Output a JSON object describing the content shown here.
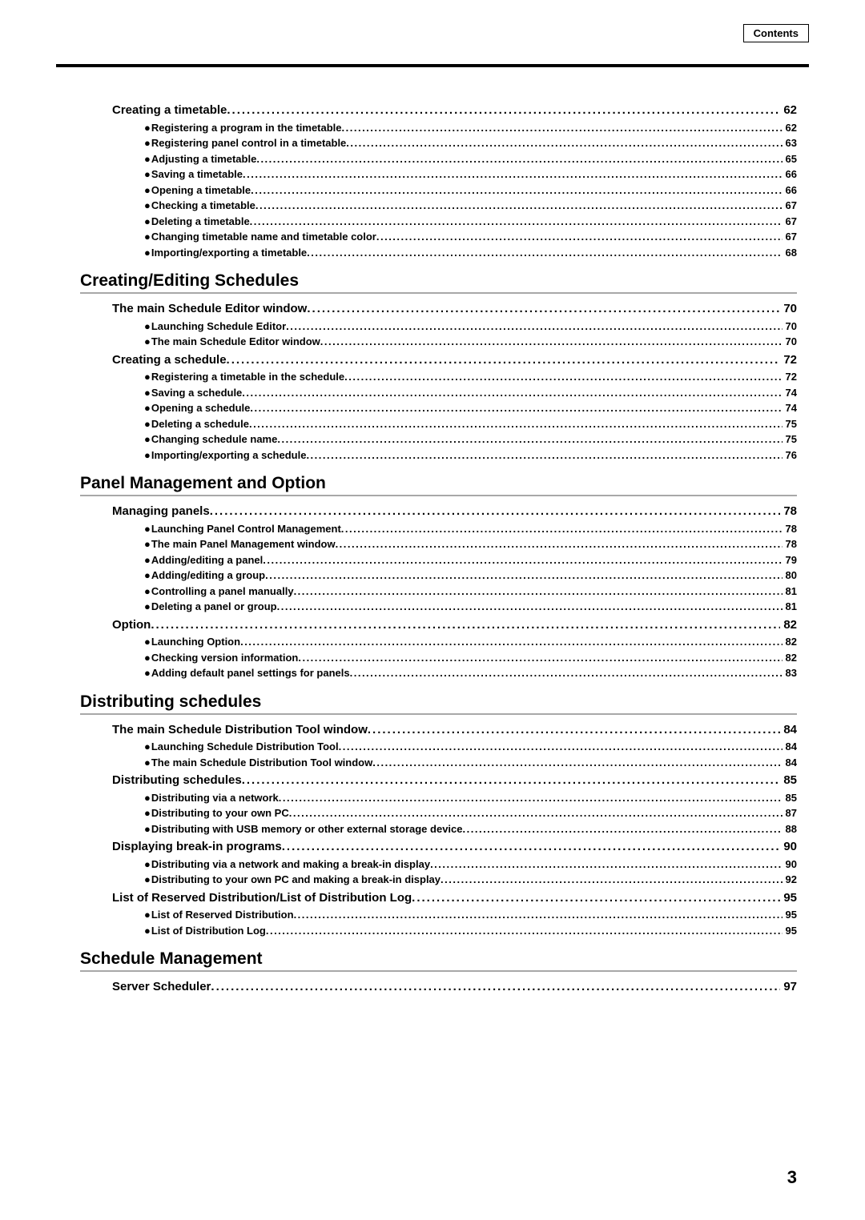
{
  "header_label": "Contents",
  "page_number": "3",
  "bullet_char": "●",
  "sections": [
    {
      "heading": null,
      "entries": [
        {
          "level": 1,
          "bullet": false,
          "text": "Creating a timetable",
          "page": "62"
        },
        {
          "level": 2,
          "bullet": true,
          "text": "Registering a program in the timetable",
          "page": "62"
        },
        {
          "level": 2,
          "bullet": true,
          "text": "Registering panel control in a timetable",
          "page": "63"
        },
        {
          "level": 2,
          "bullet": true,
          "text": "Adjusting a timetable",
          "page": "65"
        },
        {
          "level": 2,
          "bullet": true,
          "text": "Saving a timetable",
          "page": "66"
        },
        {
          "level": 2,
          "bullet": true,
          "text": "Opening a timetable",
          "page": "66"
        },
        {
          "level": 2,
          "bullet": true,
          "text": "Checking a timetable",
          "page": "67"
        },
        {
          "level": 2,
          "bullet": true,
          "text": "Deleting a timetable",
          "page": "67"
        },
        {
          "level": 2,
          "bullet": true,
          "text": "Changing timetable name and timetable color",
          "page": "67"
        },
        {
          "level": 2,
          "bullet": true,
          "text": "Importing/exporting a timetable",
          "page": "68"
        }
      ]
    },
    {
      "heading": "Creating/Editing Schedules",
      "entries": [
        {
          "level": 1,
          "bullet": false,
          "text": "The main Schedule Editor window",
          "page": "70"
        },
        {
          "level": 2,
          "bullet": true,
          "text": "Launching Schedule Editor",
          "page": "70"
        },
        {
          "level": 2,
          "bullet": true,
          "text": "The main Schedule Editor window",
          "page": "70"
        },
        {
          "level": 1,
          "bullet": false,
          "text": "Creating a schedule",
          "page": "72"
        },
        {
          "level": 2,
          "bullet": true,
          "text": "Registering a timetable in the schedule",
          "page": "72"
        },
        {
          "level": 2,
          "bullet": true,
          "text": "Saving a schedule",
          "page": "74"
        },
        {
          "level": 2,
          "bullet": true,
          "text": "Opening a schedule",
          "page": "74"
        },
        {
          "level": 2,
          "bullet": true,
          "text": "Deleting a schedule",
          "page": "75"
        },
        {
          "level": 2,
          "bullet": true,
          "text": "Changing schedule name",
          "page": "75"
        },
        {
          "level": 2,
          "bullet": true,
          "text": "Importing/exporting a schedule",
          "page": "76"
        }
      ]
    },
    {
      "heading": "Panel Management and Option",
      "entries": [
        {
          "level": 1,
          "bullet": false,
          "text": "Managing panels",
          "page": "78"
        },
        {
          "level": 2,
          "bullet": true,
          "text": "Launching Panel Control Management",
          "page": "78"
        },
        {
          "level": 2,
          "bullet": true,
          "text": "The main Panel Management window",
          "page": "78"
        },
        {
          "level": 2,
          "bullet": true,
          "text": "Adding/editing a panel",
          "page": "79"
        },
        {
          "level": 2,
          "bullet": true,
          "text": "Adding/editing a group",
          "page": "80"
        },
        {
          "level": 2,
          "bullet": true,
          "text": "Controlling a panel manually",
          "page": "81"
        },
        {
          "level": 2,
          "bullet": true,
          "text": "Deleting a panel or group",
          "page": "81"
        },
        {
          "level": 1,
          "bullet": false,
          "text": "Option",
          "page": "82"
        },
        {
          "level": 2,
          "bullet": true,
          "text": "Launching Option",
          "page": "82"
        },
        {
          "level": 2,
          "bullet": true,
          "text": "Checking version information",
          "page": "82"
        },
        {
          "level": 2,
          "bullet": true,
          "text": "Adding default panel settings for panels",
          "page": "83"
        }
      ]
    },
    {
      "heading": "Distributing schedules",
      "entries": [
        {
          "level": 1,
          "bullet": false,
          "text": "The main Schedule Distribution Tool window",
          "page": "84"
        },
        {
          "level": 2,
          "bullet": true,
          "text": "Launching Schedule Distribution Tool",
          "page": "84"
        },
        {
          "level": 2,
          "bullet": true,
          "text": "The main Schedule Distribution Tool window",
          "page": "84"
        },
        {
          "level": 1,
          "bullet": false,
          "text": "Distributing schedules",
          "page": "85"
        },
        {
          "level": 2,
          "bullet": true,
          "text": "Distributing via a network",
          "page": "85"
        },
        {
          "level": 2,
          "bullet": true,
          "text": "Distributing to your own PC",
          "page": "87"
        },
        {
          "level": 2,
          "bullet": true,
          "text": "Distributing with USB memory or other external storage device",
          "page": "88"
        },
        {
          "level": 1,
          "bullet": false,
          "text": "Displaying break-in programs",
          "page": "90"
        },
        {
          "level": 2,
          "bullet": true,
          "text": "Distributing via a network and making a break-in display",
          "page": "90"
        },
        {
          "level": 2,
          "bullet": true,
          "text": "Distributing to your own PC and making a break-in display",
          "page": "92"
        },
        {
          "level": 1,
          "bullet": false,
          "text": "List of Reserved Distribution/List of Distribution Log",
          "page": "95"
        },
        {
          "level": 2,
          "bullet": true,
          "text": "List of Reserved Distribution",
          "page": "95"
        },
        {
          "level": 2,
          "bullet": true,
          "text": "List of Distribution Log",
          "page": "95"
        }
      ]
    },
    {
      "heading": "Schedule Management",
      "entries": [
        {
          "level": 1,
          "bullet": false,
          "text": "Server Scheduler",
          "page": "97"
        }
      ]
    }
  ]
}
